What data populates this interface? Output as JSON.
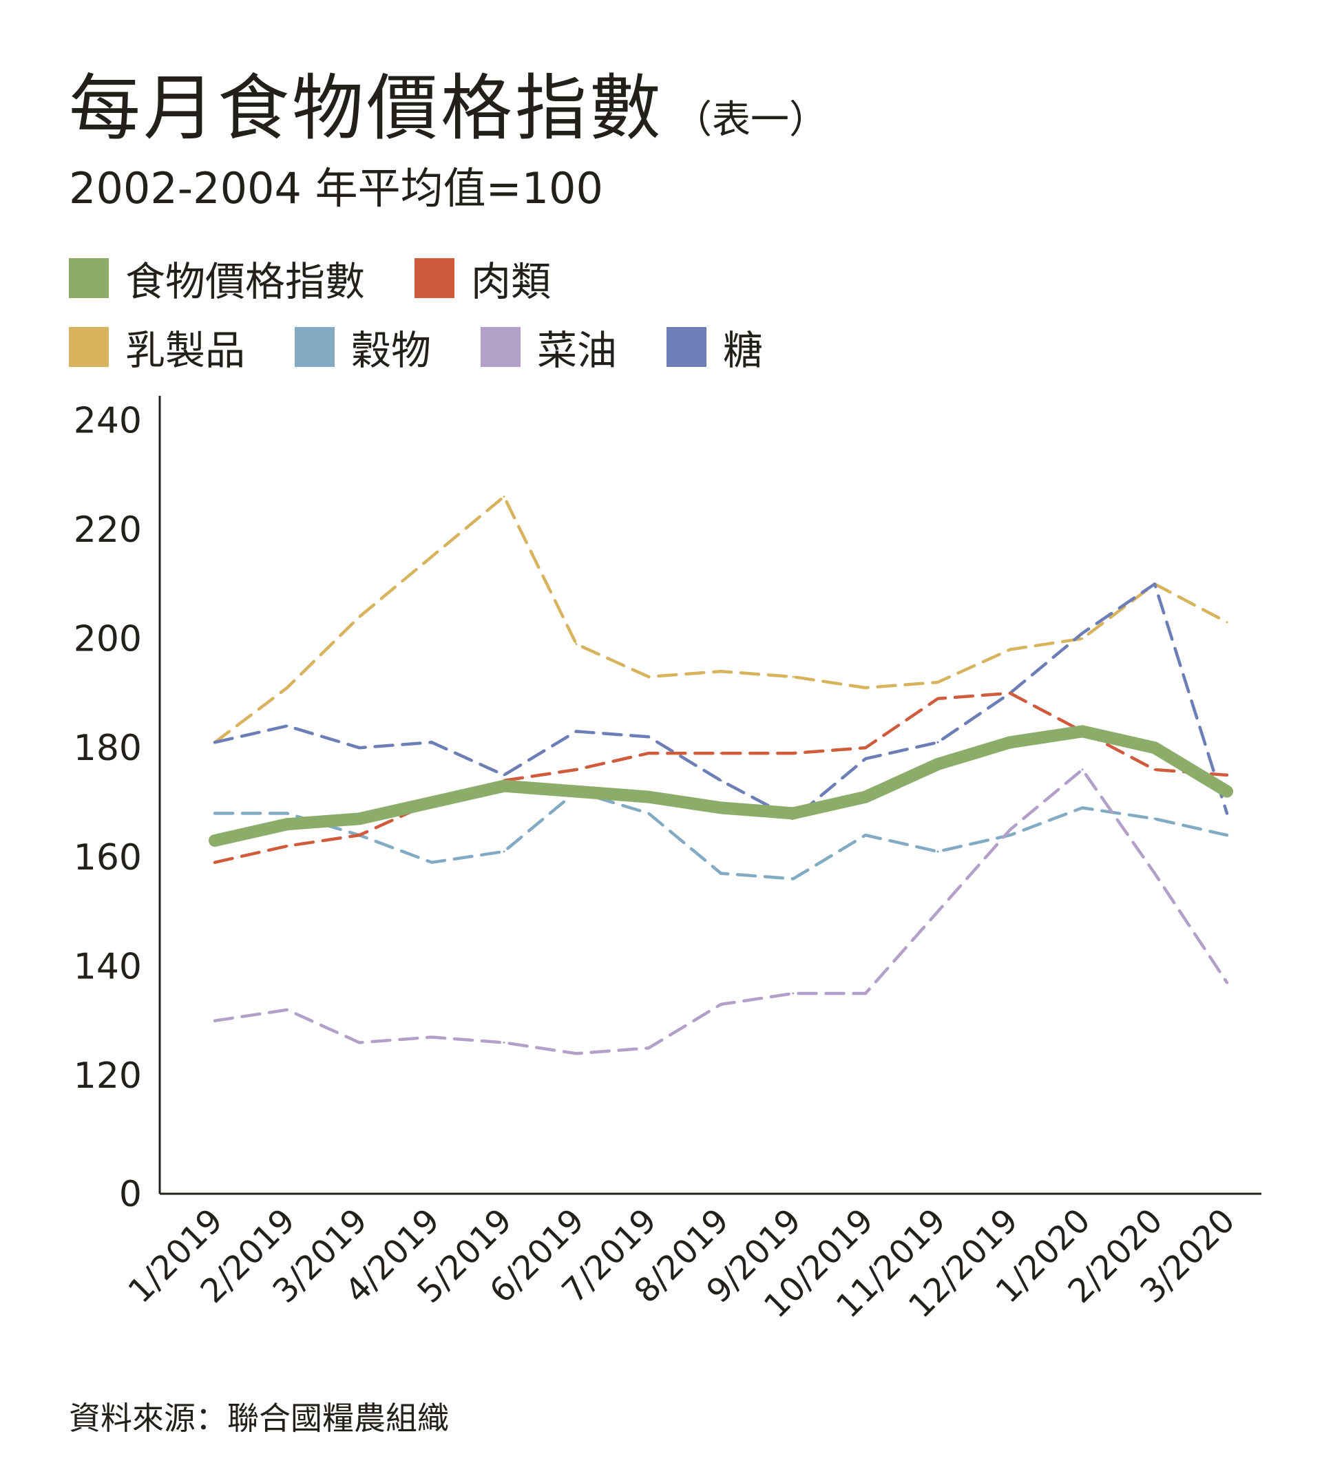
{
  "header": {
    "title": "每月食物價格指數",
    "title_suffix": "（表一）",
    "subtitle": "2002-2004 年平均值=100"
  },
  "legend": [
    {
      "label": "食物價格指數",
      "color": "#8cad6a",
      "icon": "green-square-icon"
    },
    {
      "label": "肉類",
      "color": "#cf5a3c",
      "icon": "red-square-icon"
    },
    {
      "label": "乳製品",
      "color": "#d8b35e",
      "icon": "gold-square-icon"
    },
    {
      "label": "穀物",
      "color": "#82aac2",
      "icon": "blue-square-icon"
    },
    {
      "label": "菜油",
      "color": "#b3a0c9",
      "icon": "lavender-square-icon"
    },
    {
      "label": "糖",
      "color": "#6d7eb6",
      "icon": "indigo-square-icon"
    }
  ],
  "source": "資料來源：聯合國糧農組織",
  "chart_data": {
    "type": "line",
    "title": "每月食物價格指數",
    "subtitle": "2002-2004 年平均值=100",
    "categories": [
      "1/2019",
      "2/2019",
      "3/2019",
      "4/2019",
      "5/2019",
      "6/2019",
      "7/2019",
      "8/2019",
      "9/2019",
      "10/2019",
      "11/2019",
      "12/2019",
      "1/2020",
      "2/2020",
      "3/2020"
    ],
    "y_ticks": [
      240,
      220,
      200,
      180,
      160,
      140,
      120,
      0
    ],
    "ylim": [
      0,
      240
    ],
    "y_axis_break": "between 0 and 120",
    "grid": false,
    "legend_position": "top",
    "series": [
      {
        "name": "乳製品",
        "color": "#d8b35e",
        "style": "dashed",
        "values": [
          181,
          191,
          204,
          215,
          226,
          199,
          193,
          194,
          193,
          191,
          192,
          198,
          200,
          210,
          203
        ]
      },
      {
        "name": "穀物",
        "color": "#82aac2",
        "style": "dashed",
        "values": [
          168,
          168,
          164,
          159,
          161,
          172,
          168,
          157,
          156,
          164,
          161,
          164,
          169,
          167,
          164
        ]
      },
      {
        "name": "菜油",
        "color": "#b3a0c9",
        "style": "dashed",
        "values": [
          130,
          132,
          126,
          127,
          126,
          124,
          125,
          133,
          135,
          135,
          150,
          165,
          176,
          157,
          137
        ]
      },
      {
        "name": "糖",
        "color": "#6d7eb6",
        "style": "dashed",
        "values": [
          181,
          184,
          180,
          181,
          175,
          183,
          182,
          174,
          167,
          178,
          181,
          190,
          201,
          210,
          168
        ]
      },
      {
        "name": "肉類",
        "color": "#cf5a3c",
        "style": "dashed",
        "values": [
          159,
          162,
          164,
          170,
          174,
          176,
          179,
          179,
          179,
          180,
          189,
          190,
          183,
          176,
          175
        ]
      },
      {
        "name": "食物價格指數",
        "color": "#8cad6a",
        "style": "solid-thick",
        "values": [
          163,
          166,
          167,
          170,
          173,
          172,
          171,
          169,
          168,
          171,
          177,
          181,
          183,
          180,
          172
        ]
      }
    ]
  }
}
